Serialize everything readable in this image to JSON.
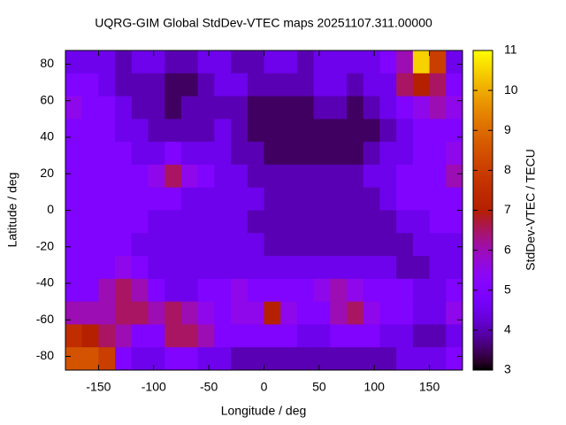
{
  "chart_data": {
    "type": "heatmap",
    "title": "UQRG-GIM Global StdDev-VTEC maps 20251107.311.00000",
    "x_label": "Longitude / deg",
    "y_label": "Latitude / deg",
    "colorbar_label": "StdDev-VTEC / TECU",
    "colormap": "gnuplot",
    "xlim": [
      -180,
      180
    ],
    "xticks": [
      -150,
      -100,
      -50,
      0,
      50,
      100,
      150
    ],
    "ylim": [
      -87.5,
      87.5
    ],
    "yticks": [
      -80,
      -60,
      -40,
      -20,
      0,
      20,
      40,
      60,
      80
    ],
    "zlim": [
      3,
      11
    ],
    "zticks": [
      3,
      4,
      5,
      6,
      7,
      8,
      9,
      10,
      11
    ],
    "x": [
      -172.5,
      -157.5,
      -142.5,
      -127.5,
      -112.5,
      -97.5,
      -82.5,
      -67.5,
      -52.5,
      -37.5,
      -22.5,
      -7.5,
      7.5,
      22.5,
      37.5,
      52.5,
      67.5,
      82.5,
      97.5,
      112.5,
      127.5,
      142.5,
      157.5,
      172.5
    ],
    "y": [
      81.25,
      68.75,
      56.25,
      43.75,
      31.25,
      18.75,
      6.25,
      -6.25,
      -18.75,
      -31.25,
      -43.75,
      -56.25,
      -68.75,
      -81.25
    ],
    "z": [
      [
        4.5,
        4.5,
        4.5,
        4,
        4.5,
        4.5,
        4,
        4,
        4.5,
        4.5,
        4,
        4,
        4.5,
        4.5,
        4,
        4.5,
        4.5,
        4.5,
        4.5,
        5,
        6,
        10.5,
        8,
        4.5
      ],
      [
        5,
        5,
        4.5,
        4,
        4,
        4,
        3.5,
        3.5,
        4,
        4.5,
        4.5,
        4,
        4,
        4,
        4,
        4.5,
        4.5,
        4,
        4.5,
        4.5,
        6.5,
        7,
        6.5,
        5
      ],
      [
        5.5,
        5,
        5,
        4.5,
        4,
        4,
        3.5,
        4,
        4,
        4,
        4,
        3.5,
        3.5,
        3.5,
        3.5,
        4,
        4,
        3.5,
        4,
        4.5,
        5,
        5.5,
        6,
        5.5
      ],
      [
        5,
        5,
        5,
        4.5,
        4.5,
        4,
        4,
        4,
        4,
        4.5,
        4,
        3.5,
        3.5,
        3.5,
        3.5,
        3.5,
        3.5,
        3.5,
        3.5,
        4,
        4.5,
        5,
        5,
        5
      ],
      [
        5,
        5,
        5,
        5,
        4.5,
        4.5,
        5,
        4.5,
        4.5,
        4.5,
        4,
        4,
        3.5,
        3.5,
        3.5,
        3.5,
        3.5,
        3.5,
        4,
        4.5,
        4.5,
        5,
        5,
        5.5
      ],
      [
        5,
        5,
        5,
        5,
        5,
        5.5,
        6.5,
        5.5,
        5,
        4.5,
        4.5,
        4,
        4,
        4,
        4,
        4,
        4,
        4,
        4.5,
        4.5,
        5,
        5,
        5,
        6
      ],
      [
        5,
        5,
        5,
        5,
        5,
        5,
        5,
        4.5,
        4.5,
        4.5,
        4.5,
        4.5,
        4,
        4,
        4,
        4,
        4,
        4,
        4,
        4.5,
        5,
        5,
        5,
        5
      ],
      [
        5,
        5,
        5,
        5,
        5,
        4.5,
        4.5,
        4.5,
        4.5,
        4.5,
        4.5,
        4,
        4,
        4,
        4,
        4,
        4,
        4,
        4,
        4,
        4.5,
        4.5,
        5,
        5
      ],
      [
        5,
        5,
        5,
        5,
        4.5,
        4.5,
        4.5,
        4.5,
        4.5,
        4.5,
        4.5,
        4.5,
        4,
        4,
        4,
        4,
        4,
        4,
        4,
        4,
        4,
        4.5,
        4.5,
        4.5
      ],
      [
        5,
        5,
        5,
        5.5,
        5,
        4.5,
        4.5,
        4.5,
        4.5,
        4.5,
        4.5,
        4.5,
        4.5,
        4.5,
        4.5,
        4.5,
        4.5,
        4.5,
        4.5,
        4.5,
        4,
        4,
        4.5,
        4.5
      ],
      [
        5,
        5,
        6,
        6.5,
        6,
        5,
        4.5,
        4.5,
        5,
        5,
        5.5,
        5,
        5,
        5,
        5,
        5.5,
        6,
        5.5,
        5,
        5,
        5,
        4.5,
        4.5,
        5
      ],
      [
        6,
        6,
        6,
        6.5,
        6.5,
        6,
        6.5,
        6,
        5.5,
        5,
        5.5,
        5.5,
        7,
        5.5,
        5,
        5,
        6,
        6.5,
        5.5,
        5,
        5,
        4.5,
        4.5,
        5.5
      ],
      [
        7.5,
        7,
        6.5,
        6,
        5,
        5,
        6.5,
        6.5,
        6,
        5,
        5,
        5,
        5,
        5,
        4.5,
        4.5,
        5,
        5,
        5,
        4.5,
        4.5,
        4,
        4,
        4.5
      ],
      [
        8.5,
        8.5,
        8,
        5,
        4.5,
        4.5,
        5,
        5,
        4.5,
        4.5,
        4,
        4,
        4,
        4,
        4,
        4,
        4,
        4,
        4,
        4,
        4.5,
        4.5,
        4.5,
        5
      ]
    ]
  }
}
